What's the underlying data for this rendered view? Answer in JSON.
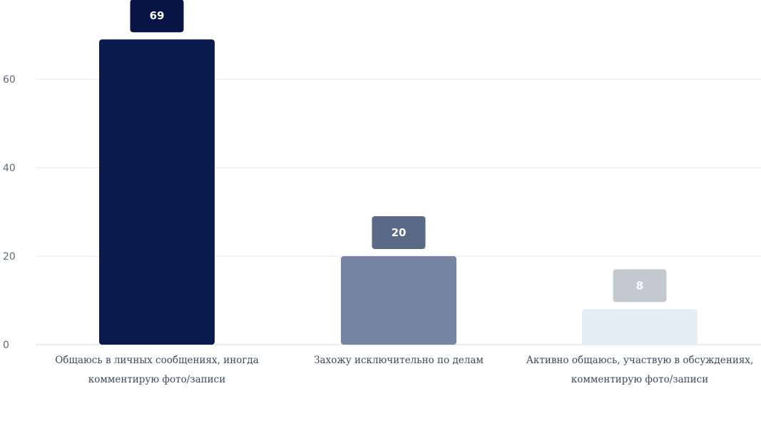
{
  "chart_data": {
    "type": "bar",
    "categories": [
      "Общаюсь в личных сообщениях, иногда комментирую фото/записи",
      "Захожу исключительно по делам",
      "Активно общаюсь, участвую в обсуждениях, комментирую фото/записи"
    ],
    "values": [
      69,
      20,
      8
    ],
    "yticks": [
      "0",
      "20",
      "40",
      "60"
    ],
    "ylim": [
      0,
      79
    ],
    "grid": true,
    "colors": {
      "bars": [
        "#0b1b4d",
        "#7585a2",
        "#e5edf5"
      ],
      "badges": [
        "#081446",
        "#5a6986",
        "#c3c9d1"
      ],
      "grid": "#e3e9ef",
      "tick_text": "#5f6b7a",
      "category_text": "#3a4a5c"
    }
  }
}
